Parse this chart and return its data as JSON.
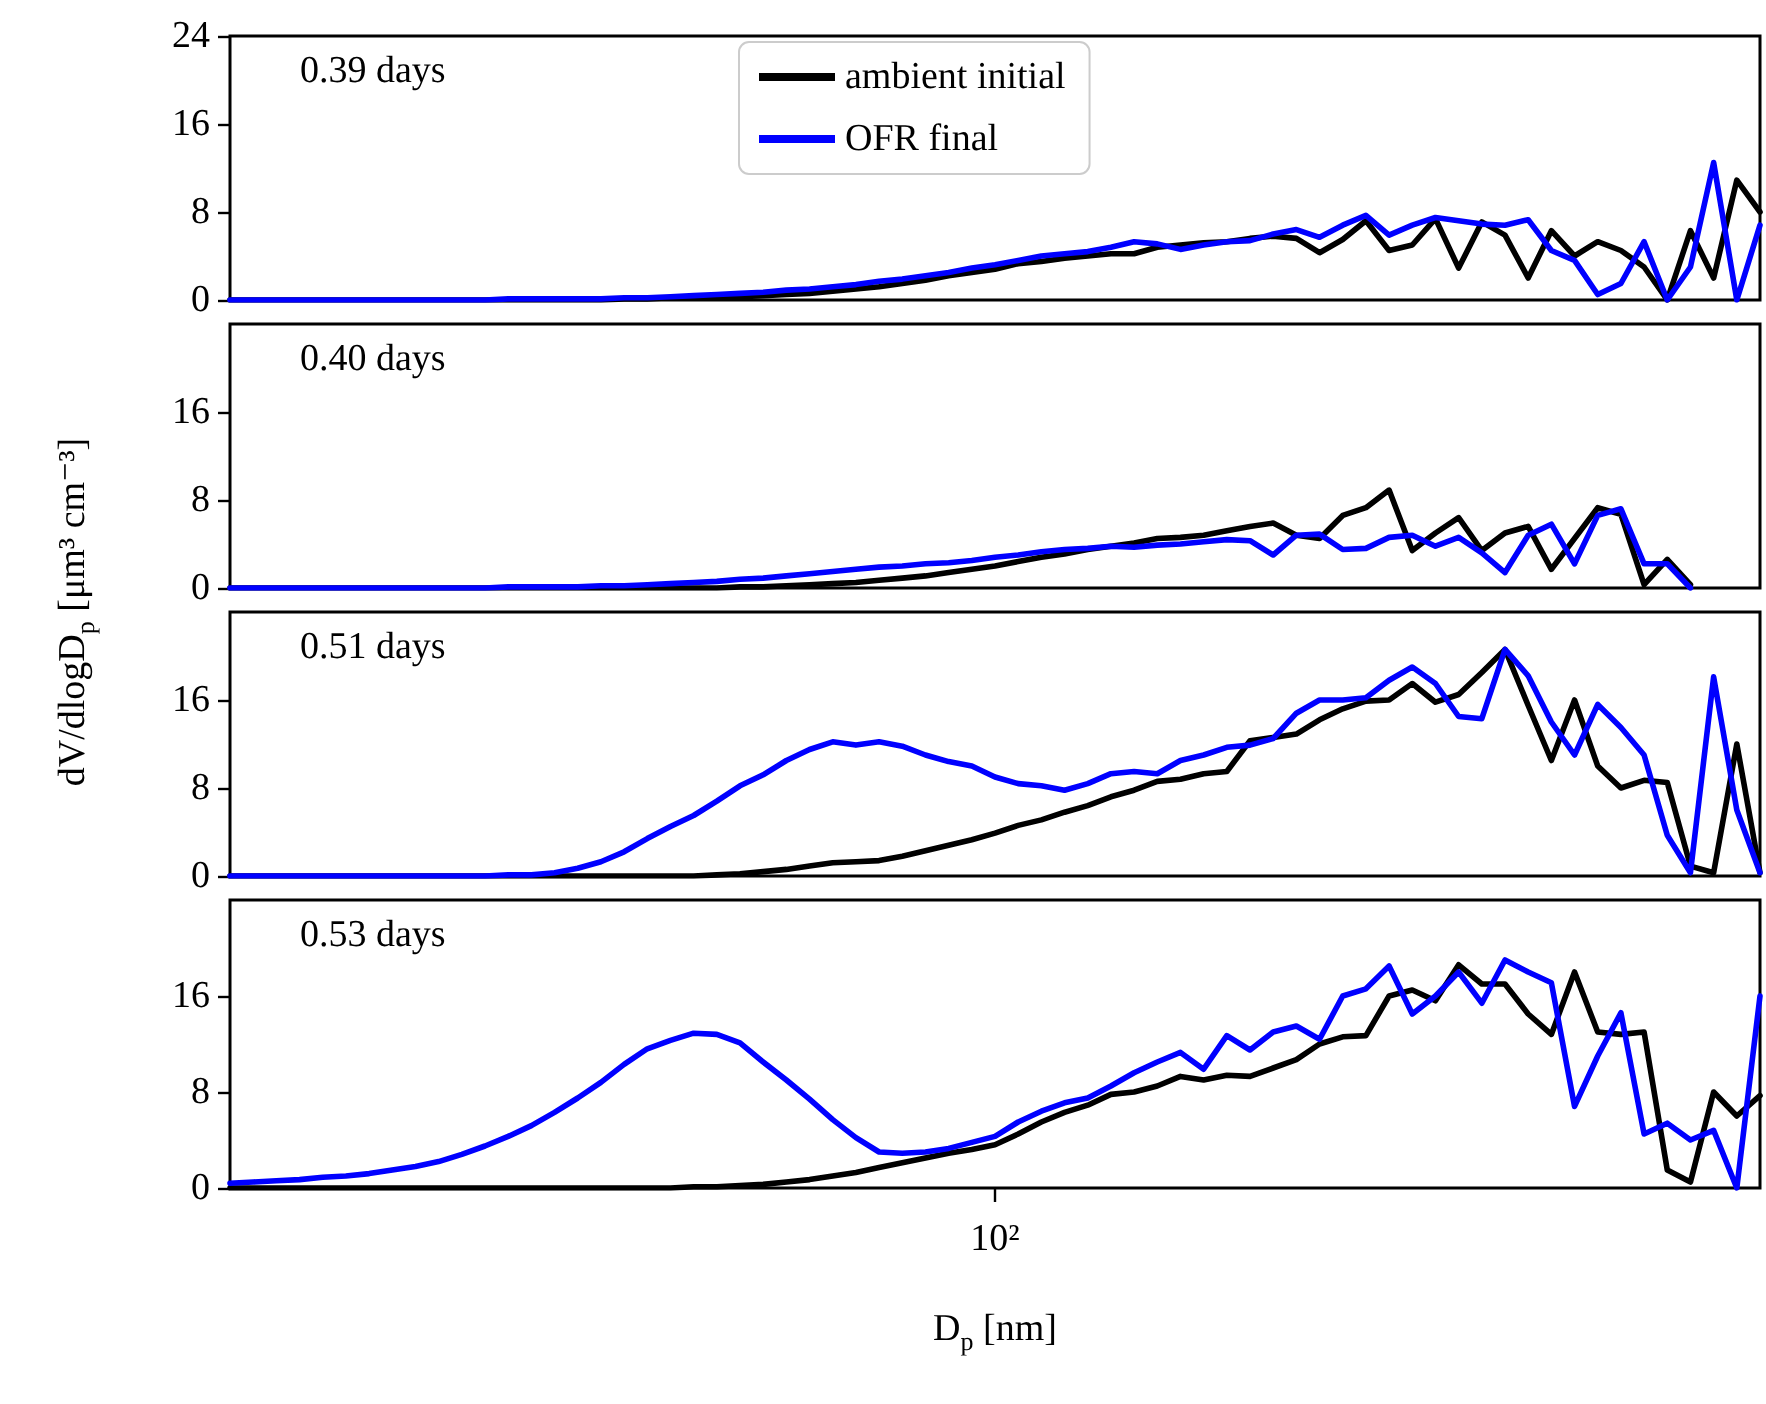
{
  "chart_data": [
    {
      "type": "line",
      "marker": "none",
      "line_style": "solid",
      "legend": "top",
      "annotations": [
        "0.39 days"
      ],
      "categories": [
        null,
        null,
        null,
        null,
        null,
        null,
        null,
        null,
        null,
        null,
        null,
        null,
        null,
        null,
        null,
        null,
        null,
        null,
        null,
        null,
        null,
        null,
        null,
        null,
        null,
        null,
        null,
        null,
        null,
        null,
        null,
        null,
        null,
        null,
        null,
        null,
        null,
        null,
        null,
        null,
        null,
        null,
        null,
        null,
        null,
        null,
        null,
        null,
        null,
        null,
        null,
        null,
        null,
        null,
        null,
        null,
        null,
        null,
        null,
        null,
        null,
        null,
        null,
        null,
        null,
        null,
        null
      ],
      "ylim": [
        0,
        24
      ],
      "yticks": [
        0,
        8,
        16,
        24
      ],
      "series": [
        {
          "name": "ambient initial",
          "color": "#000000",
          "values": [
            0,
            0,
            0,
            0,
            0,
            0,
            0,
            0,
            0,
            0,
            0,
            0,
            0,
            0,
            0,
            0,
            0,
            0.1,
            0.1,
            0.2,
            0.2,
            0.3,
            0.3,
            0.4,
            0.5,
            0.6,
            0.8,
            1,
            1.2,
            1.5,
            1.8,
            2.2,
            2.5,
            2.8,
            3.3,
            3.5,
            3.8,
            4,
            4.2,
            4.2,
            4.8,
            5,
            5.2,
            5.3,
            5.6,
            5.8,
            5.6,
            4.3,
            5.5,
            7.2,
            4.5,
            5,
            7.4,
            2.9,
            7.1,
            5.9,
            2,
            6.3,
            4,
            5.3,
            4.5,
            3,
            0,
            6.3,
            2,
            10.9,
            8
          ]
        },
        {
          "name": "OFR final",
          "color": "#0000ff",
          "values": [
            0,
            0,
            0,
            0,
            0,
            0,
            0,
            0,
            0,
            0,
            0,
            0,
            0.1,
            0.1,
            0.1,
            0.1,
            0.1,
            0.2,
            0.2,
            0.3,
            0.4,
            0.5,
            0.6,
            0.7,
            0.9,
            1,
            1.2,
            1.4,
            1.7,
            1.9,
            2.2,
            2.5,
            2.9,
            3.2,
            3.6,
            4,
            4.2,
            4.4,
            4.8,
            5.3,
            5.1,
            4.6,
            5,
            5.3,
            5.4,
            6,
            6.4,
            5.7,
            6.8,
            7.7,
            5.9,
            6.8,
            7.5,
            7.2,
            6.9,
            6.8,
            7.3,
            4.5,
            3.6,
            0.5,
            1.5,
            5.3,
            0,
            3,
            12.5,
            0,
            6.8
          ]
        }
      ]
    },
    {
      "type": "line",
      "marker": "none",
      "line_style": "solid",
      "annotations": [
        "0.40 days"
      ],
      "ylabel": "dV/dlogD$_{p}$ [μm³ cm⁻³]",
      "categories": [
        null,
        null,
        null,
        null,
        null,
        null,
        null,
        null,
        null,
        null,
        null,
        null,
        null,
        null,
        null,
        null,
        null,
        null,
        null,
        null,
        null,
        null,
        null,
        null,
        null,
        null,
        null,
        null,
        null,
        null,
        null,
        null,
        null,
        null,
        null,
        null,
        null,
        null,
        null,
        null,
        null,
        null,
        null,
        null,
        null,
        null,
        null,
        null,
        null,
        null,
        null,
        null,
        null,
        null,
        null,
        null,
        null,
        null,
        null,
        null,
        null,
        null,
        null,
        null,
        null,
        null,
        null
      ],
      "ylim": [
        0,
        24
      ],
      "yticks": [
        0,
        8,
        16
      ],
      "series": [
        {
          "color": "#000000",
          "values": [
            0,
            0,
            0,
            0,
            0,
            0,
            0,
            0,
            0,
            0,
            0,
            0,
            0,
            0,
            0,
            0,
            0,
            0,
            0,
            0,
            0,
            0,
            0.1,
            0.1,
            0.2,
            0.3,
            0.4,
            0.5,
            0.7,
            0.9,
            1.1,
            1.4,
            1.7,
            2,
            2.4,
            2.8,
            3.1,
            3.5,
            3.8,
            4.1,
            4.5,
            4.6,
            4.8,
            5.2,
            5.6,
            5.9,
            4.8,
            4.5,
            6.6,
            7.3,
            8.9,
            3.4,
            5,
            6.4,
            3.4,
            5,
            5.6,
            1.7,
            4.5,
            7.3,
            6.7,
            0.3,
            2.6,
            0.3,
            null,
            null,
            null
          ]
        },
        {
          "color": "#0000ff",
          "values": [
            0,
            0,
            0,
            0,
            0,
            0,
            0,
            0,
            0,
            0,
            0,
            0,
            0.1,
            0.1,
            0.1,
            0.1,
            0.2,
            0.2,
            0.3,
            0.4,
            0.5,
            0.6,
            0.8,
            0.9,
            1.1,
            1.3,
            1.5,
            1.7,
            1.9,
            2,
            2.2,
            2.3,
            2.5,
            2.8,
            3,
            3.3,
            3.5,
            3.6,
            3.8,
            3.7,
            3.9,
            4,
            4.2,
            4.4,
            4.3,
            3,
            4.8,
            4.9,
            3.5,
            3.6,
            4.6,
            4.8,
            3.8,
            4.6,
            3.2,
            1.4,
            4.8,
            5.8,
            2.2,
            6.6,
            7.2,
            2.2,
            2.2,
            0,
            null,
            null,
            null
          ]
        }
      ]
    },
    {
      "type": "line",
      "marker": "none",
      "line_style": "solid",
      "annotations": [
        "0.51 days"
      ],
      "categories": [
        null,
        null,
        null,
        null,
        null,
        null,
        null,
        null,
        null,
        null,
        null,
        null,
        null,
        null,
        null,
        null,
        null,
        null,
        null,
        null,
        null,
        null,
        null,
        null,
        null,
        null,
        null,
        null,
        null,
        null,
        null,
        null,
        null,
        null,
        null,
        null,
        null,
        null,
        null,
        null,
        null,
        null,
        null,
        null,
        null,
        null,
        null,
        null,
        null,
        null,
        null,
        null,
        null,
        null,
        null,
        null,
        null,
        null,
        null,
        null,
        null,
        null,
        null,
        null,
        null,
        null,
        null
      ],
      "ylim": [
        0,
        24
      ],
      "yticks": [
        0,
        8,
        16
      ],
      "series": [
        {
          "color": "#000000",
          "values": [
            0,
            0,
            0,
            0,
            0,
            0,
            0,
            0,
            0,
            0,
            0,
            0,
            0,
            0,
            0,
            0,
            0,
            0,
            0,
            0,
            0,
            0.1,
            0.2,
            0.4,
            0.6,
            0.9,
            1.2,
            1.3,
            1.4,
            1.8,
            2.3,
            2.8,
            3.3,
            3.9,
            4.6,
            5.1,
            5.8,
            6.4,
            7.2,
            7.8,
            8.6,
            8.8,
            9.3,
            9.5,
            12.3,
            12.6,
            12.9,
            14.2,
            15.2,
            15.9,
            16,
            17.5,
            15.8,
            16.5,
            18.5,
            20.6,
            15.5,
            10.5,
            16,
            10,
            8,
            8.7,
            8.5,
            0.9,
            0.3,
            12,
            0.3
          ]
        },
        {
          "color": "#0000ff",
          "values": [
            0,
            0,
            0,
            0,
            0,
            0,
            0,
            0,
            0,
            0,
            0,
            0,
            0.1,
            0.1,
            0.3,
            0.7,
            1.3,
            2.2,
            3.4,
            4.5,
            5.5,
            6.8,
            8.2,
            9.2,
            10.5,
            11.5,
            12.2,
            11.9,
            12.2,
            11.8,
            11,
            10.4,
            10,
            9,
            8.4,
            8.2,
            7.8,
            8.4,
            9.3,
            9.5,
            9.3,
            10.5,
            11,
            11.7,
            11.9,
            12.5,
            14.8,
            16,
            16,
            16.2,
            17.8,
            19,
            17.5,
            14.5,
            14.3,
            20.6,
            18.2,
            14,
            11,
            15.6,
            13.5,
            11,
            3.7,
            0.3,
            18.1,
            6,
            0.3
          ]
        }
      ]
    },
    {
      "type": "line",
      "marker": "none",
      "line_style": "solid",
      "annotations": [
        "0.53 days"
      ],
      "xlabel": "D$_{p}$ [nm]",
      "categories": [
        null,
        null,
        null,
        null,
        null,
        null,
        null,
        null,
        null,
        null,
        null,
        null,
        null,
        null,
        null,
        null,
        null,
        null,
        null,
        null,
        null,
        null,
        null,
        null,
        null,
        null,
        null,
        null,
        null,
        null,
        null,
        null,
        null,
        "10²",
        null,
        null,
        null,
        null,
        null,
        null,
        null,
        null,
        null,
        null,
        null,
        null,
        null,
        null,
        null,
        null,
        null,
        null,
        null,
        null,
        null,
        null,
        null,
        null,
        null,
        null,
        null,
        null,
        null,
        null,
        null,
        null,
        null
      ],
      "ylim": [
        0,
        24
      ],
      "yticks": [
        0,
        8,
        16
      ],
      "series": [
        {
          "color": "#000000",
          "values": [
            0,
            0,
            0,
            0,
            0,
            0,
            0,
            0,
            0,
            0,
            0,
            0,
            0,
            0,
            0,
            0,
            0,
            0,
            0,
            0,
            0.1,
            0.1,
            0.2,
            0.3,
            0.5,
            0.7,
            1,
            1.3,
            1.7,
            2.1,
            2.5,
            2.9,
            3.2,
            3.6,
            4.5,
            5.5,
            6.3,
            6.9,
            7.8,
            8,
            8.5,
            9.3,
            9,
            9.4,
            9.3,
            10,
            10.7,
            12,
            12.6,
            12.7,
            16,
            16.5,
            15.6,
            18.6,
            17,
            17,
            14.5,
            12.8,
            18,
            13,
            12.8,
            13,
            1.5,
            0.5,
            8,
            6,
            7.7
          ]
        },
        {
          "color": "#0000ff",
          "values": [
            0.4,
            0.5,
            0.6,
            0.7,
            0.9,
            1,
            1.2,
            1.5,
            1.8,
            2.2,
            2.8,
            3.5,
            4.3,
            5.2,
            6.3,
            7.5,
            8.8,
            10.3,
            11.6,
            12.3,
            12.9,
            12.8,
            12.1,
            10.5,
            9,
            7.4,
            5.7,
            4.2,
            3,
            2.9,
            3,
            3.3,
            3.8,
            4.3,
            5.5,
            6.4,
            7.1,
            7.5,
            8.5,
            9.6,
            10.5,
            11.3,
            9.9,
            12.7,
            11.5,
            13,
            13.5,
            12.4,
            16,
            16.6,
            18.5,
            14.5,
            16,
            18,
            15.4,
            19,
            18,
            17.1,
            6.8,
            11,
            14.6,
            4.5,
            5.4,
            4,
            4.8,
            0,
            16
          ]
        }
      ]
    }
  ]
}
